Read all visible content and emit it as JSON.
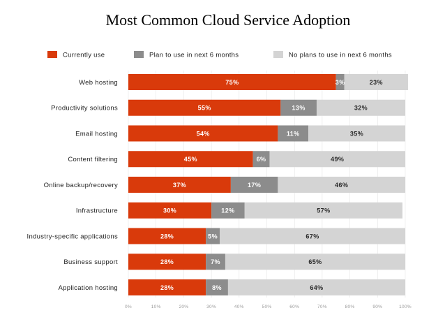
{
  "chart_data": {
    "type": "bar",
    "orientation": "horizontal",
    "stacked": true,
    "title": "Most Common Cloud Service Adoption",
    "xlabel": "",
    "ylabel": "",
    "xlim": [
      0,
      100
    ],
    "legend_position": "top",
    "x_ticks": [
      "0%",
      "10%",
      "20%",
      "30%",
      "40%",
      "50%",
      "60%",
      "70%",
      "80%",
      "90%",
      "100%"
    ],
    "categories": [
      "Web hosting",
      "Productivity solutions",
      "Email hosting",
      "Content filtering",
      "Online backup/recovery",
      "Infrastructure",
      "Industry-specific applications",
      "Business support",
      "Application hosting"
    ],
    "series": [
      {
        "name": "Currently use",
        "color": "#d93a0b",
        "label_color": "#ffffff",
        "values": [
          75,
          55,
          54,
          45,
          37,
          30,
          28,
          28,
          28
        ]
      },
      {
        "name": "Plan to use in next 6 months",
        "color": "#8c8c8c",
        "label_color": "#ffffff",
        "values": [
          3,
          13,
          11,
          6,
          17,
          12,
          5,
          7,
          8
        ]
      },
      {
        "name": "No plans to use in next 6 months",
        "color": "#d4d4d4",
        "label_color": "#2a2a2a",
        "values": [
          23,
          32,
          35,
          49,
          46,
          57,
          67,
          65,
          64
        ]
      }
    ]
  }
}
